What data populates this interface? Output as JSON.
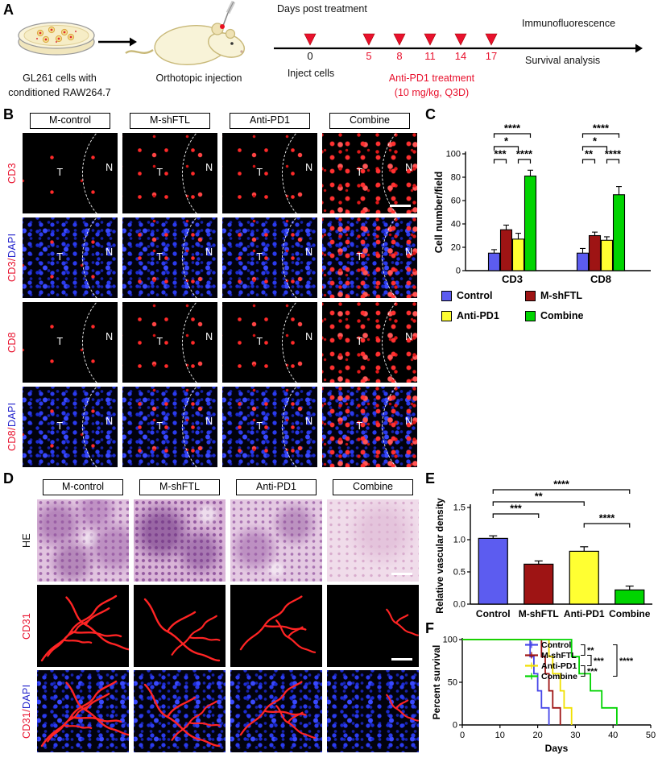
{
  "panels": {
    "a": "A",
    "b": "B",
    "c": "C",
    "d": "D",
    "e": "E",
    "f": "F"
  },
  "colors": {
    "red": "#e8112d",
    "blue": "#2323cc",
    "bar_blue": "#5c5cf0",
    "bar_dark_red": "#9e1414",
    "bar_yellow": "#ffff32",
    "bar_green": "#00d400"
  },
  "panelA": {
    "dish_caption": [
      "GL261 cells with",
      "conditioned RAW264.7"
    ],
    "mouse_caption": "Orthotopic injection",
    "timeline_title": "Days post treatment",
    "days": [
      "0",
      "5",
      "8",
      "11",
      "14",
      "17"
    ],
    "inject_label": "Inject cells",
    "treatment": [
      "Anti-PD1 treatment",
      "(10 mg/kg, Q3D)"
    ],
    "readouts": [
      "Immunofluorescence",
      "Survival analysis"
    ]
  },
  "panelB": {
    "columns": [
      "M-control",
      "M-shFTL",
      "Anti-PD1",
      "Combine"
    ],
    "tumor_label": "T",
    "normal_label": "N",
    "rows": [
      {
        "label_parts": [
          [
            "CD3",
            "red"
          ]
        ],
        "mode": "red",
        "densities": [
          1,
          2,
          2,
          3
        ]
      },
      {
        "label_parts": [
          [
            "CD3/",
            "red"
          ],
          [
            "DAPI",
            "blue"
          ]
        ],
        "mode": "merge",
        "densities": [
          1,
          2,
          2,
          3
        ]
      },
      {
        "label_parts": [
          [
            "CD8",
            "red"
          ]
        ],
        "mode": "red",
        "densities": [
          1,
          2,
          2,
          3
        ]
      },
      {
        "label_parts": [
          [
            "CD8/",
            "red"
          ],
          [
            "DAPI",
            "blue"
          ]
        ],
        "mode": "merge",
        "densities": [
          1,
          2,
          2,
          3
        ]
      }
    ]
  },
  "panelD": {
    "columns": [
      "M-control",
      "M-shFTL",
      "Anti-PD1",
      "Combine"
    ],
    "rows": [
      {
        "label_parts": [
          [
            "HE",
            "black"
          ]
        ],
        "mode": "he"
      },
      {
        "label_parts": [
          [
            "CD31",
            "red"
          ]
        ],
        "mode": "vessel"
      },
      {
        "label_parts": [
          [
            "CD31/",
            "red"
          ],
          [
            "DAPI",
            "blue"
          ]
        ],
        "mode": "vessel-dapi"
      }
    ]
  },
  "chart_data": [
    {
      "id": "chartC",
      "type": "bar",
      "grouped": true,
      "categories": [
        "CD3",
        "CD8"
      ],
      "series": [
        {
          "name": "Control",
          "color": "#5c5cf0",
          "values": [
            15,
            15
          ],
          "errors": [
            3,
            4
          ]
        },
        {
          "name": "M-shFTL",
          "color": "#9e1414",
          "values": [
            35,
            30
          ],
          "errors": [
            4,
            3
          ]
        },
        {
          "name": "Anti-PD1",
          "color": "#ffff32",
          "values": [
            27,
            26
          ],
          "errors": [
            5,
            3
          ]
        },
        {
          "name": "Combine",
          "color": "#00d400",
          "values": [
            81,
            65
          ],
          "errors": [
            5,
            7
          ]
        }
      ],
      "ylabel": "Cell number/field",
      "ylim": [
        0,
        100
      ],
      "yticks": [
        0,
        20,
        40,
        60,
        80,
        100
      ],
      "legend_position": "below",
      "significance": [
        {
          "cat": 0,
          "a": 0,
          "b": 3,
          "label": "****",
          "level": 0
        },
        {
          "cat": 0,
          "a": 0,
          "b": 2,
          "label": "*",
          "level": 1
        },
        {
          "cat": 0,
          "a": 0,
          "b": 1,
          "label": "***",
          "level": 2
        },
        {
          "cat": 0,
          "a": 2,
          "b": 3,
          "label": "****",
          "level": 2
        },
        {
          "cat": 1,
          "a": 0,
          "b": 3,
          "label": "****",
          "level": 0
        },
        {
          "cat": 1,
          "a": 0,
          "b": 2,
          "label": "*",
          "level": 1
        },
        {
          "cat": 1,
          "a": 0,
          "b": 1,
          "label": "**",
          "level": 2
        },
        {
          "cat": 1,
          "a": 2,
          "b": 3,
          "label": "****",
          "level": 2
        }
      ]
    },
    {
      "id": "chartE",
      "type": "bar",
      "grouped": false,
      "categories": [
        "Control",
        "M-shFTL",
        "Anti-PD1",
        "Combine"
      ],
      "values": [
        1.02,
        0.62,
        0.82,
        0.22
      ],
      "errors": [
        0.04,
        0.05,
        0.07,
        0.06
      ],
      "colors": [
        "#5c5cf0",
        "#9e1414",
        "#ffff32",
        "#00d400"
      ],
      "ylabel": "Relative vascular density",
      "ylim": [
        0,
        1.5
      ],
      "yticks": [
        "0.0",
        "0.5",
        "1.0",
        "1.5"
      ],
      "significance": [
        {
          "a": 0,
          "b": 3,
          "label": "****",
          "level": 0
        },
        {
          "a": 0,
          "b": 2,
          "label": "**",
          "level": 1
        },
        {
          "a": 0,
          "b": 1,
          "label": "***",
          "level": 2
        },
        {
          "a": 2,
          "b": 3,
          "label": "****",
          "level": 2.8
        }
      ]
    },
    {
      "id": "chartF",
      "type": "survival",
      "xlabel": "Days",
      "ylabel": "Percent survival",
      "xlim": [
        0,
        50
      ],
      "xticks": [
        0,
        10,
        20,
        30,
        40,
        50
      ],
      "ylim": [
        0,
        100
      ],
      "yticks": [
        0,
        50,
        100
      ],
      "series": [
        {
          "name": "Control",
          "color": "#4646e8",
          "points": [
            [
              0,
              100
            ],
            [
              17,
              100
            ],
            [
              18,
              80
            ],
            [
              19,
              60
            ],
            [
              20,
              40
            ],
            [
              21,
              20
            ],
            [
              23,
              0
            ]
          ]
        },
        {
          "name": "M-shFTL",
          "color": "#9e1414",
          "points": [
            [
              0,
              100
            ],
            [
              20,
              100
            ],
            [
              21,
              80
            ],
            [
              22,
              60
            ],
            [
              23,
              40
            ],
            [
              24,
              20
            ],
            [
              26,
              0
            ]
          ]
        },
        {
          "name": "Anti-PD1",
          "color": "#f0e000",
          "points": [
            [
              0,
              100
            ],
            [
              22,
              100
            ],
            [
              23,
              80
            ],
            [
              24,
              60
            ],
            [
              26,
              40
            ],
            [
              27,
              20
            ],
            [
              29,
              0
            ]
          ]
        },
        {
          "name": "Combine",
          "color": "#00d400",
          "points": [
            [
              0,
              100
            ],
            [
              27,
              100
            ],
            [
              29,
              80
            ],
            [
              31,
              60
            ],
            [
              34,
              40
            ],
            [
              37,
              20
            ],
            [
              41,
              0
            ]
          ]
        }
      ],
      "significance": [
        {
          "a": 0,
          "b": 1,
          "label": "**"
        },
        {
          "a": 1,
          "b": 2,
          "label": "***"
        },
        {
          "a": 2,
          "b": 3,
          "label": "***"
        },
        {
          "a": 0,
          "b": 3,
          "label": "****"
        }
      ]
    }
  ]
}
